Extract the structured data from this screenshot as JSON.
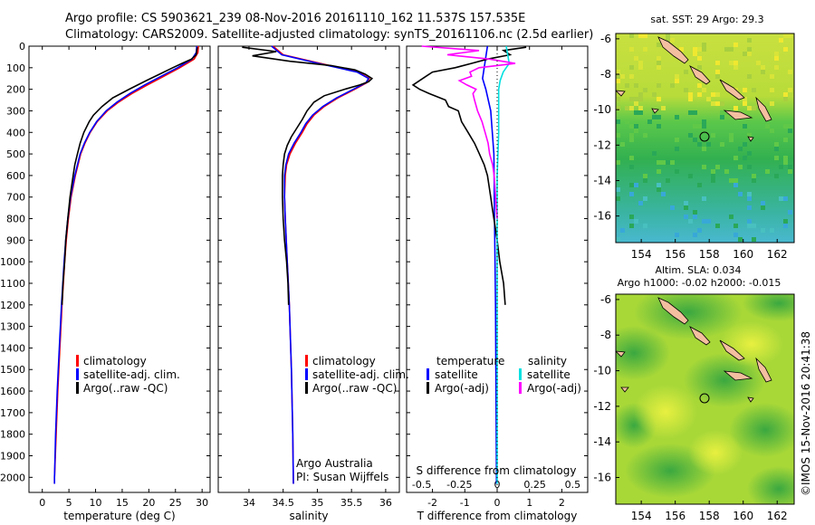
{
  "header": {
    "line1": "Argo profile: CS 5903621_239 08-Nov-2016 20161110_162 11.537S 157.535E",
    "line2": "Climatology: CARS2009. Satellite-adjusted climatology: synTS_20161106.nc (2.5d earlier)"
  },
  "credit": "©IMOS 15-Nov-2016 20:41:38",
  "colors": {
    "clim": "#ff0000",
    "sat": "#0000ff",
    "argo": "#000000",
    "sal_sat": "#00e0e0",
    "sal_argo": "#ff00ff"
  },
  "chart_data": [
    {
      "type": "line",
      "name": "temperature-profile",
      "xlabel": "temperature (deg C)",
      "xlim": [
        -2.5,
        31.5
      ],
      "xticks": [
        0,
        5,
        10,
        15,
        20,
        25,
        30
      ],
      "ylim": [
        0,
        2070
      ],
      "yticks": [
        0,
        100,
        200,
        300,
        400,
        500,
        600,
        700,
        800,
        900,
        1000,
        1100,
        1200,
        1300,
        1400,
        1500,
        1600,
        1700,
        1800,
        1900,
        2000
      ],
      "legend": [
        "climatology",
        "satellite-adj. clim.",
        "Argo(..raw -QC)"
      ],
      "series": [
        {
          "name": "climatology",
          "depth": [
            0,
            30,
            60,
            100,
            140,
            180,
            220,
            260,
            300,
            350,
            400,
            450,
            500,
            600,
            700,
            800,
            900,
            1000,
            1200,
            1400,
            1600,
            1800,
            2000,
            2030
          ],
          "values": [
            29.3,
            29.2,
            28.5,
            25.8,
            22.8,
            19.7,
            16.8,
            14.3,
            12.2,
            10.3,
            9.0,
            8.0,
            7.2,
            6.2,
            5.4,
            4.9,
            4.5,
            4.2,
            3.7,
            3.3,
            2.9,
            2.6,
            2.3,
            2.3
          ]
        },
        {
          "name": "satellite-adj. clim.",
          "depth": [
            0,
            30,
            60,
            100,
            140,
            180,
            220,
            260,
            300,
            350,
            400,
            450,
            500,
            600,
            700,
            800,
            900,
            1000,
            1200,
            1400,
            1600,
            1800,
            2000,
            2030
          ],
          "values": [
            29.0,
            28.9,
            28.1,
            25.4,
            22.3,
            19.2,
            16.4,
            14.0,
            12.0,
            10.2,
            8.9,
            7.9,
            7.1,
            6.1,
            5.3,
            4.8,
            4.4,
            4.1,
            3.6,
            3.2,
            2.8,
            2.5,
            2.3,
            2.3
          ]
        },
        {
          "name": "Argo",
          "depth": [
            5,
            20,
            40,
            60,
            80,
            100,
            130,
            160,
            200,
            240,
            280,
            320,
            350,
            400,
            450,
            500,
            550,
            600,
            700,
            800,
            900,
            1000,
            1100,
            1200
          ],
          "values": [
            29.1,
            29.0,
            28.9,
            28.0,
            26.2,
            24.5,
            22.0,
            19.5,
            16.3,
            13.2,
            11.2,
            9.6,
            8.8,
            7.8,
            7.1,
            6.6,
            6.1,
            5.8,
            5.2,
            4.8,
            4.4,
            4.2,
            3.9,
            3.7
          ]
        }
      ]
    },
    {
      "type": "line",
      "name": "salinity-profile",
      "xlabel": "salinity",
      "xlim": [
        33.55,
        36.2
      ],
      "xticks": [
        34,
        34.5,
        35,
        35.5,
        36
      ],
      "ylim": [
        0,
        2070
      ],
      "legend": [
        "climatology",
        "satellite-adj. clim.",
        "Argo(..raw -QC)"
      ],
      "annotation": [
        "Argo Australia",
        "PI: Susan Wijffels"
      ],
      "series": [
        {
          "name": "climatology",
          "depth": [
            0,
            40,
            80,
            120,
            150,
            170,
            200,
            240,
            280,
            320,
            360,
            400,
            450,
            500,
            550,
            600,
            700,
            800,
            1000,
            1200,
            1500,
            1800,
            2030
          ],
          "values": [
            34.35,
            34.5,
            35.05,
            35.6,
            35.76,
            35.72,
            35.55,
            35.3,
            35.1,
            34.95,
            34.85,
            34.78,
            34.68,
            34.6,
            34.55,
            34.53,
            34.52,
            34.53,
            34.56,
            34.59,
            34.62,
            34.64,
            34.65
          ]
        },
        {
          "name": "satellite-adj. clim.",
          "depth": [
            0,
            40,
            80,
            120,
            150,
            170,
            200,
            240,
            280,
            320,
            360,
            400,
            450,
            500,
            550,
            600,
            700,
            800,
            1000,
            1200,
            1500,
            1800,
            2030
          ],
          "values": [
            34.33,
            34.48,
            35.02,
            35.58,
            35.75,
            35.71,
            35.53,
            35.28,
            35.08,
            34.93,
            34.83,
            34.76,
            34.66,
            34.58,
            34.54,
            34.52,
            34.52,
            34.53,
            34.56,
            34.59,
            34.62,
            34.64,
            34.65
          ]
        },
        {
          "name": "Argo",
          "depth": [
            5,
            25,
            45,
            70,
            90,
            110,
            130,
            150,
            165,
            180,
            200,
            230,
            260,
            300,
            340,
            380,
            420,
            460,
            500,
            550,
            600,
            700,
            800,
            900,
            1000,
            1100,
            1200
          ],
          "values": [
            33.9,
            34.4,
            34.05,
            34.6,
            35.2,
            35.55,
            35.7,
            35.8,
            35.75,
            35.62,
            35.4,
            35.1,
            34.95,
            34.85,
            34.78,
            34.7,
            34.62,
            34.56,
            34.52,
            34.5,
            34.49,
            34.49,
            34.5,
            34.52,
            34.55,
            34.57,
            34.58
          ]
        }
      ]
    },
    {
      "type": "line",
      "name": "difference-profile",
      "xlabel": "T difference from climatology",
      "xlabel_top": "S difference from climatology",
      "xlim": [
        -2.8,
        2.8
      ],
      "xticks": [
        -2,
        -1,
        0,
        1,
        2
      ],
      "xticks_top": [
        "-0.5",
        "-0.25",
        "0",
        "0.25",
        "0.5"
      ],
      "ylim": [
        0,
        2070
      ],
      "legend": [
        "temperature",
        "satellite",
        "Argo(-adj)",
        "salinity",
        "satellite",
        "Argo(-adj)"
      ],
      "series": [
        {
          "name": "temperature satellite",
          "depth": [
            0,
            50,
            100,
            150,
            200,
            300,
            500,
            800,
            1200,
            2030
          ],
          "values": [
            -0.3,
            -0.35,
            -0.4,
            -0.45,
            -0.35,
            -0.2,
            -0.1,
            -0.08,
            -0.05,
            -0.02
          ]
        },
        {
          "name": "temperature Argo(-adj)",
          "depth": [
            5,
            20,
            40,
            60,
            80,
            100,
            120,
            140,
            160,
            180,
            200,
            220,
            250,
            280,
            300,
            350,
            400,
            450,
            500,
            550,
            600,
            650,
            700,
            750,
            800,
            900,
            1000,
            1100,
            1200
          ],
          "values": [
            0.9,
            0.2,
            0.4,
            -0.3,
            -0.8,
            -1.3,
            -2.0,
            -2.2,
            -2.4,
            -2.6,
            -2.4,
            -2.1,
            -1.6,
            -1.5,
            -1.2,
            -1.1,
            -0.9,
            -0.7,
            -0.55,
            -0.4,
            -0.3,
            -0.25,
            -0.2,
            -0.15,
            -0.1,
            0,
            0.08,
            0.2,
            0.25
          ]
        },
        {
          "name": "salinity satellite",
          "depth": [
            0,
            40,
            80,
            120,
            160,
            200,
            300,
            400,
            600,
            800,
            1000,
            1500,
            2030
          ],
          "values": [
            0.06,
            0.07,
            0.08,
            0.04,
            0.02,
            0.01,
            0.01,
            0.01,
            0,
            0,
            0,
            0,
            0
          ]
        },
        {
          "name": "salinity Argo(-adj)",
          "depth": [
            0,
            20,
            40,
            60,
            80,
            100,
            120,
            140,
            160,
            180,
            200,
            220,
            250,
            300,
            350,
            400,
            450,
            500,
            550,
            600,
            700,
            800
          ],
          "values": [
            -0.5,
            -0.12,
            -0.33,
            -0.05,
            0.12,
            -0.12,
            -0.18,
            -0.17,
            -0.25,
            -0.2,
            -0.14,
            -0.16,
            -0.15,
            -0.13,
            -0.1,
            -0.08,
            -0.06,
            -0.05,
            -0.03,
            -0.02,
            -0.01,
            0
          ]
        }
      ]
    },
    {
      "type": "heatmap",
      "name": "sst-map",
      "title": "sat. SST: 29 Argo: 29.3",
      "xticks": [
        154,
        156,
        158,
        160,
        162
      ],
      "yticks": [
        -6,
        -8,
        -10,
        -12,
        -14,
        -16
      ],
      "xlim": [
        152.5,
        163
      ],
      "ylim": [
        -17.5,
        -5.7
      ],
      "marker": {
        "lon": 157.535,
        "lat": -11.537
      }
    },
    {
      "type": "heatmap",
      "name": "sla-map",
      "title": "Altim. SLA: 0.034",
      "subtitle": "Argo h1000: -0.02 h2000: -0.015",
      "xticks": [
        154,
        156,
        158,
        160,
        162
      ],
      "yticks": [
        -6,
        -8,
        -10,
        -12,
        -14,
        -16
      ],
      "xlim": [
        152.5,
        163
      ],
      "ylim": [
        -17.5,
        -5.7
      ],
      "marker": {
        "lon": 157.535,
        "lat": -11.537
      }
    }
  ],
  "legend_profile": [
    "climatology",
    "satellite-adj. clim.",
    "Argo(..raw -QC)"
  ],
  "legend_diff": {
    "t_head": "temperature",
    "s_head": "salinity",
    "sat": "satellite",
    "argo": "Argo(-adj)"
  },
  "annotation": {
    "line1": "Argo Australia",
    "line2": "PI: Susan Wijffels"
  },
  "diff_top_label": "S difference from climatology"
}
